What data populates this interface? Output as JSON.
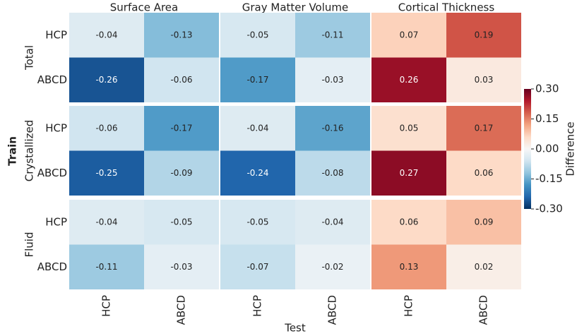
{
  "chart_data": {
    "type": "heatmap",
    "x_label": "Test",
    "y_label": "Train",
    "columns": [
      "Surface Area",
      "Gray Matter Volume",
      "Cortical Thickness"
    ],
    "rows": [
      "Total",
      "Crystallized",
      "Fluid"
    ],
    "x_categories": [
      "HCP",
      "ABCD"
    ],
    "y_categories": [
      "HCP",
      "ABCD"
    ],
    "values": [
      [
        [
          [
            -0.04,
            -0.13
          ],
          [
            -0.26,
            -0.06
          ]
        ],
        [
          [
            -0.05,
            -0.11
          ],
          [
            -0.17,
            -0.03
          ]
        ],
        [
          [
            0.07,
            0.19
          ],
          [
            0.26,
            0.03
          ]
        ]
      ],
      [
        [
          [
            -0.06,
            -0.17
          ],
          [
            -0.25,
            -0.09
          ]
        ],
        [
          [
            -0.04,
            -0.16
          ],
          [
            -0.24,
            -0.08
          ]
        ],
        [
          [
            0.05,
            0.17
          ],
          [
            0.27,
            0.06
          ]
        ]
      ],
      [
        [
          [
            -0.04,
            -0.05
          ],
          [
            -0.11,
            -0.03
          ]
        ],
        [
          [
            -0.05,
            -0.04
          ],
          [
            -0.07,
            -0.02
          ]
        ],
        [
          [
            0.06,
            0.09
          ],
          [
            0.13,
            0.02
          ]
        ]
      ]
    ],
    "colorbar_label": "Difference",
    "clim": [
      -0.3,
      0.3
    ],
    "cticks": [
      {
        "value": -0.3,
        "label": "-0.30"
      },
      -0.15,
      {
        "value": 0,
        "label": "0.00"
      },
      0.15,
      {
        "value": 0.3,
        "label": "0.30"
      }
    ],
    "colormap": [
      "#053061",
      "#2166ac",
      "#4393c3",
      "#92c5de",
      "#d1e5f0",
      "#f7f7f7",
      "#fddbc7",
      "#f4a582",
      "#d6604d",
      "#b2182b",
      "#67001f"
    ]
  }
}
